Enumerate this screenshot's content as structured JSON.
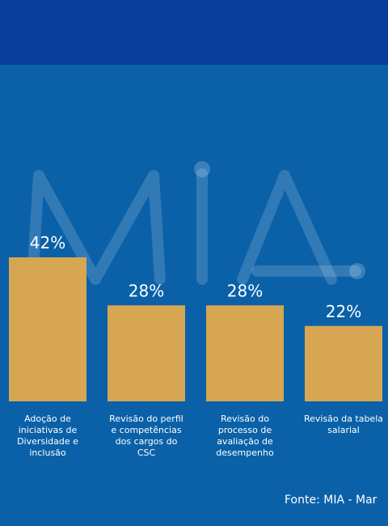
{
  "chart_data": {
    "type": "bar",
    "categories": [
      "Adoção de iniciativas de Diversidade e inclusão",
      "Revisão do perfil e competências dos cargos do CSC",
      "Revisão do processo de avaliação de desempenho",
      "Revisão da tabela salarial"
    ],
    "category_lines": [
      [
        "Adoção de",
        "iniciativas de",
        "Diversidade e",
        "inclusão"
      ],
      [
        "Revisão do perfil",
        "e competências",
        "dos cargos do",
        "CSC"
      ],
      [
        "Revisão do",
        "processo de",
        "avaliação de",
        "desempenho"
      ],
      [
        "Revisão da tabela",
        "salarial"
      ]
    ],
    "values": [
      42,
      28,
      28,
      22
    ],
    "data_labels": [
      "42%",
      "28%",
      "28%",
      "22%"
    ],
    "ylim": [
      0,
      42
    ],
    "bar_color": "#d6a653",
    "grid": false,
    "watermark": "MIA"
  },
  "source": "Fonte: MIA - Mar"
}
